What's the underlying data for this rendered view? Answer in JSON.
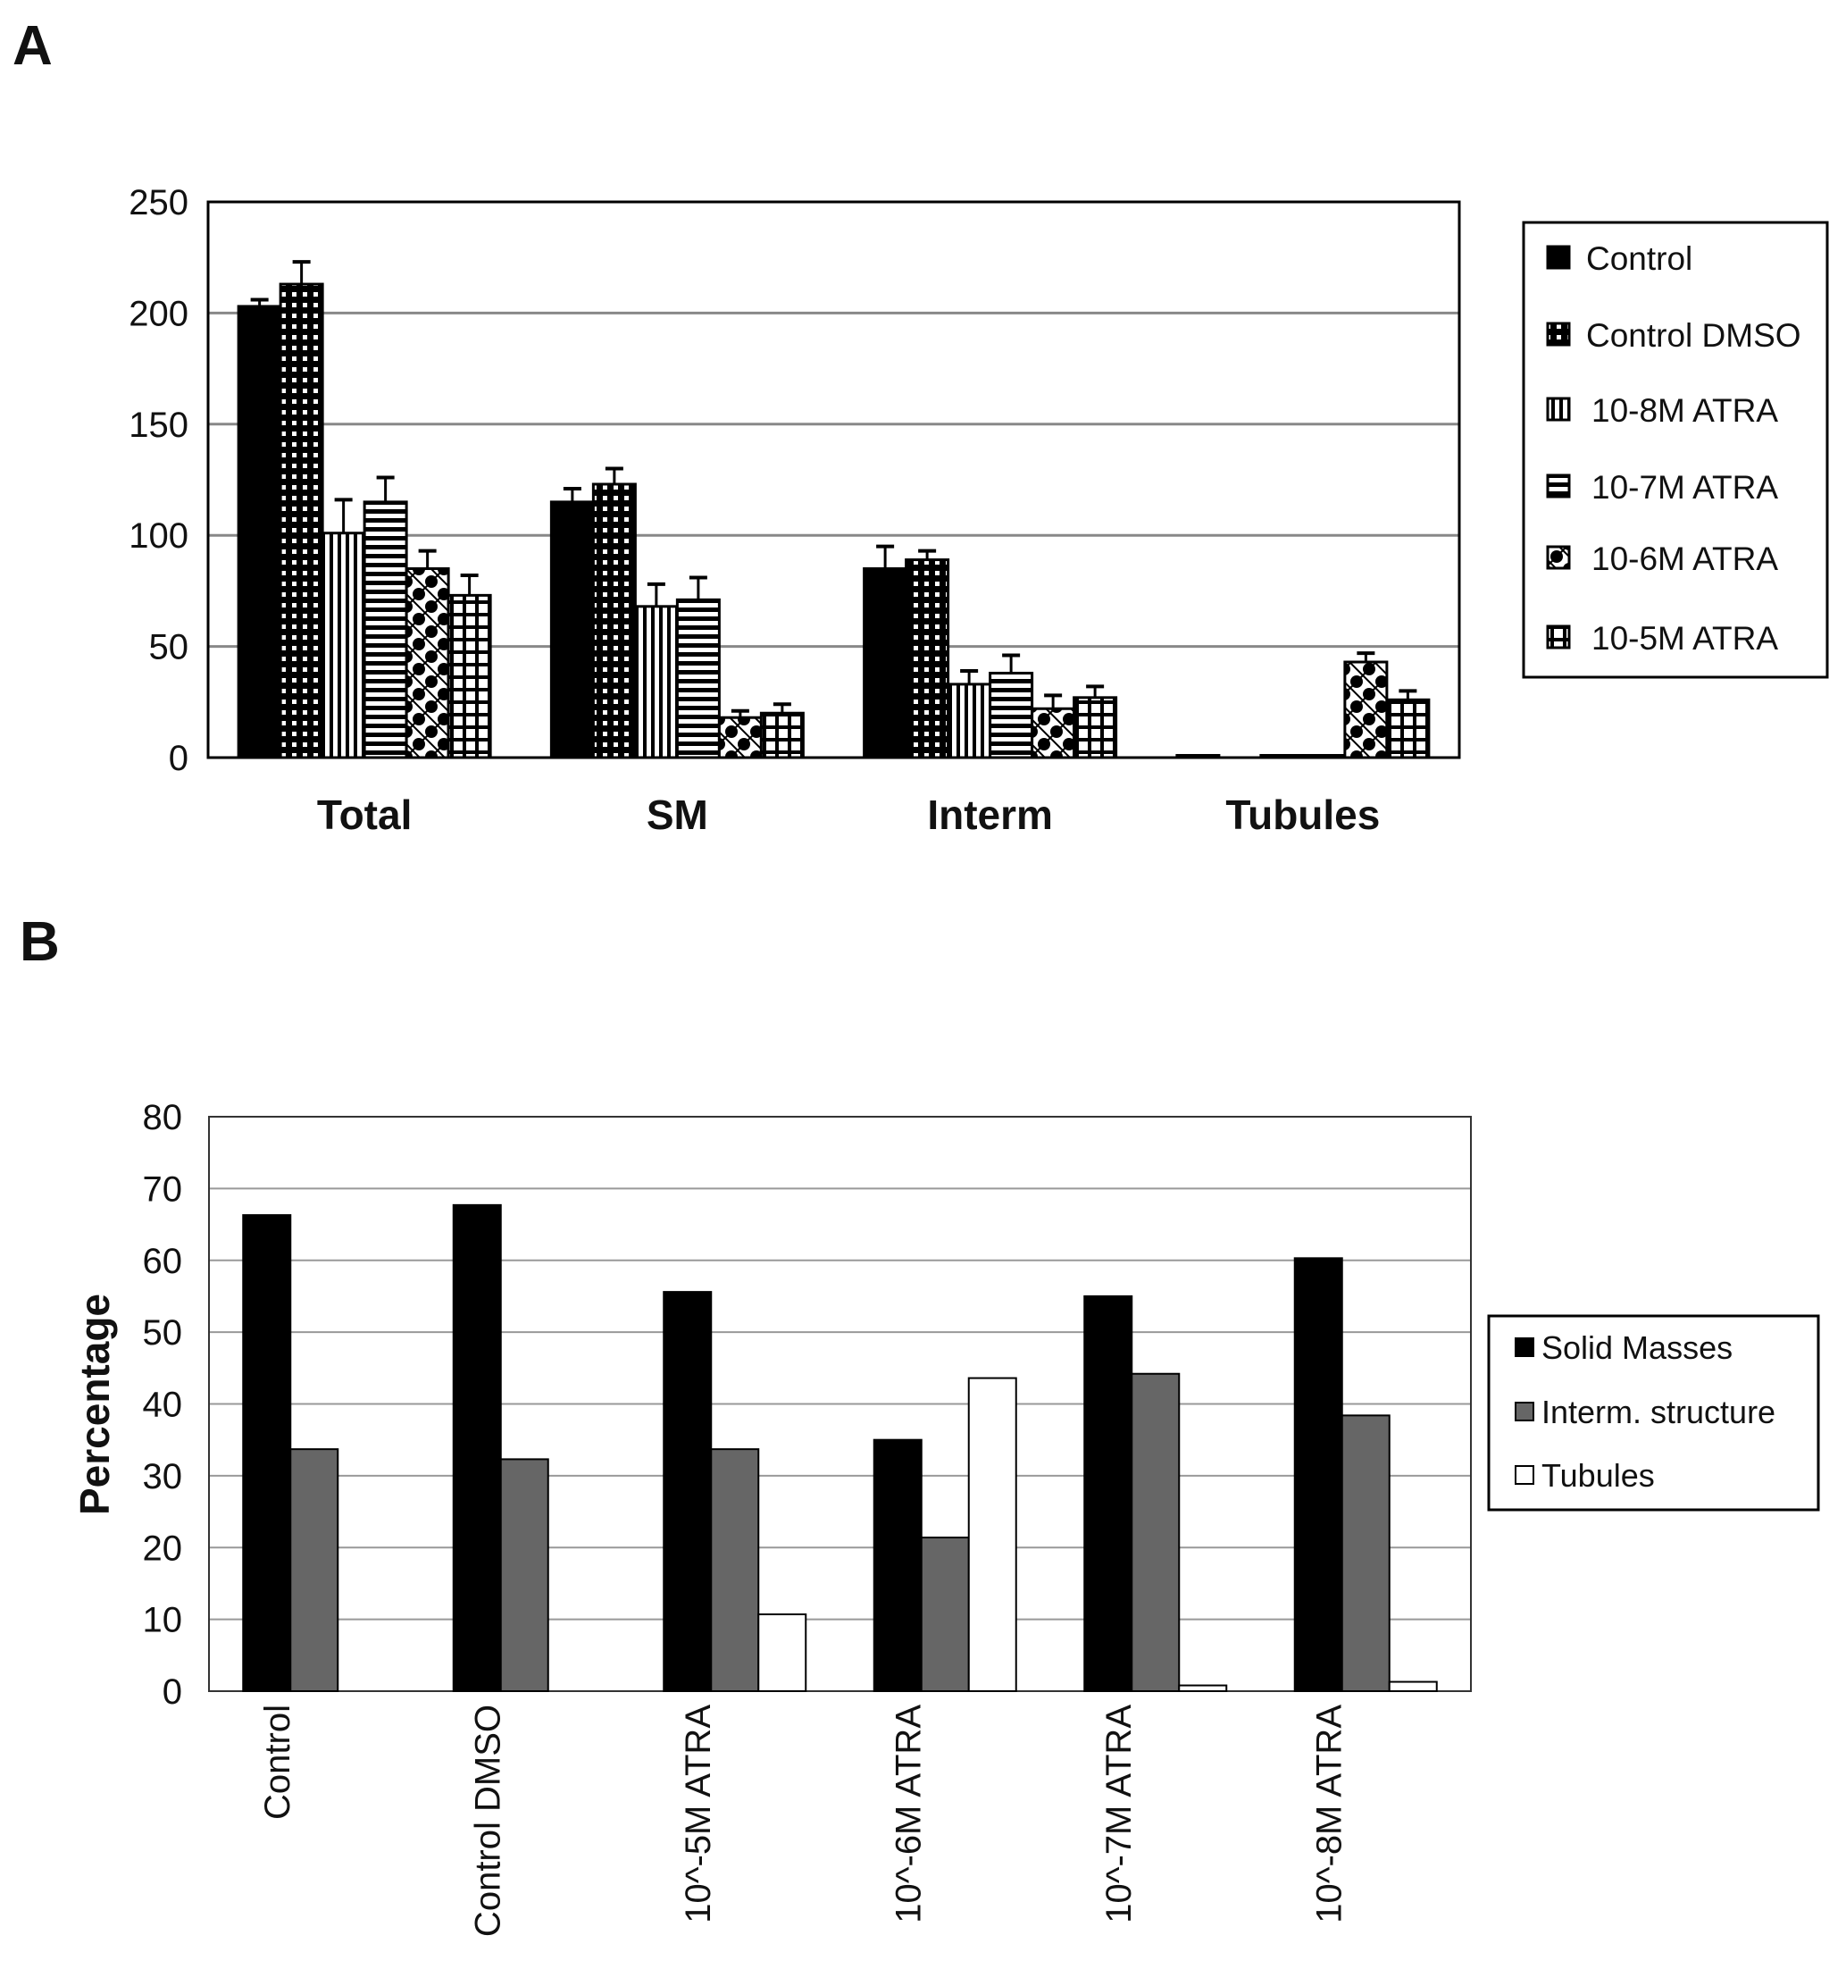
{
  "chart_data": [
    {
      "panel": "A",
      "type": "bar",
      "categories": [
        "Total",
        "SM",
        "Interm",
        "Tubules"
      ],
      "ylim": [
        0,
        250
      ],
      "yticks": [
        0,
        50,
        100,
        150,
        200,
        250
      ],
      "grid": true,
      "legend_position": "right",
      "series": [
        {
          "name": "Control",
          "pattern": "solid",
          "values": [
            203,
            115,
            85,
            1
          ],
          "errors": [
            3,
            6,
            10,
            0
          ]
        },
        {
          "name": "Control DMSO",
          "pattern": "checker",
          "values": [
            213,
            123,
            89,
            0
          ],
          "errors": [
            10,
            7,
            4,
            0
          ]
        },
        {
          "name": "10-8M ATRA",
          "pattern": "vertical",
          "values": [
            101,
            68,
            33,
            1
          ],
          "errors": [
            15,
            10,
            6,
            0
          ]
        },
        {
          "name": "10-7M ATRA",
          "pattern": "horizontal",
          "values": [
            115,
            71,
            38,
            1
          ],
          "errors": [
            11,
            10,
            8,
            0
          ]
        },
        {
          "name": "10-6M ATRA",
          "pattern": "dots",
          "values": [
            85,
            18,
            22,
            43
          ],
          "errors": [
            8,
            3,
            6,
            4
          ]
        },
        {
          "name": "10-5M ATRA",
          "pattern": "grid",
          "values": [
            73,
            20,
            27,
            26
          ],
          "errors": [
            9,
            4,
            5,
            4
          ]
        }
      ]
    },
    {
      "panel": "B",
      "type": "bar",
      "categories": [
        "Control",
        "Control DMSO",
        "10^-5M ATRA",
        "10^-6M ATRA",
        "10^-7M ATRA",
        "10^-8M ATRA"
      ],
      "ylabel": "Percentage",
      "ylim": [
        0,
        80
      ],
      "yticks": [
        0,
        10,
        20,
        30,
        40,
        50,
        60,
        70,
        80
      ],
      "grid": true,
      "legend_position": "right",
      "series": [
        {
          "name": "Solid Masses",
          "color": "#000000",
          "values": [
            66.3,
            67.7,
            55.6,
            35.0,
            55.0,
            60.3
          ]
        },
        {
          "name": "Interm. structure",
          "color": "#666666",
          "values": [
            33.7,
            32.3,
            33.7,
            21.4,
            44.2,
            38.4
          ]
        },
        {
          "name": "Tubules",
          "color": "#ffffff",
          "values": [
            0,
            0,
            10.7,
            43.6,
            0.8,
            1.3
          ]
        }
      ]
    }
  ]
}
